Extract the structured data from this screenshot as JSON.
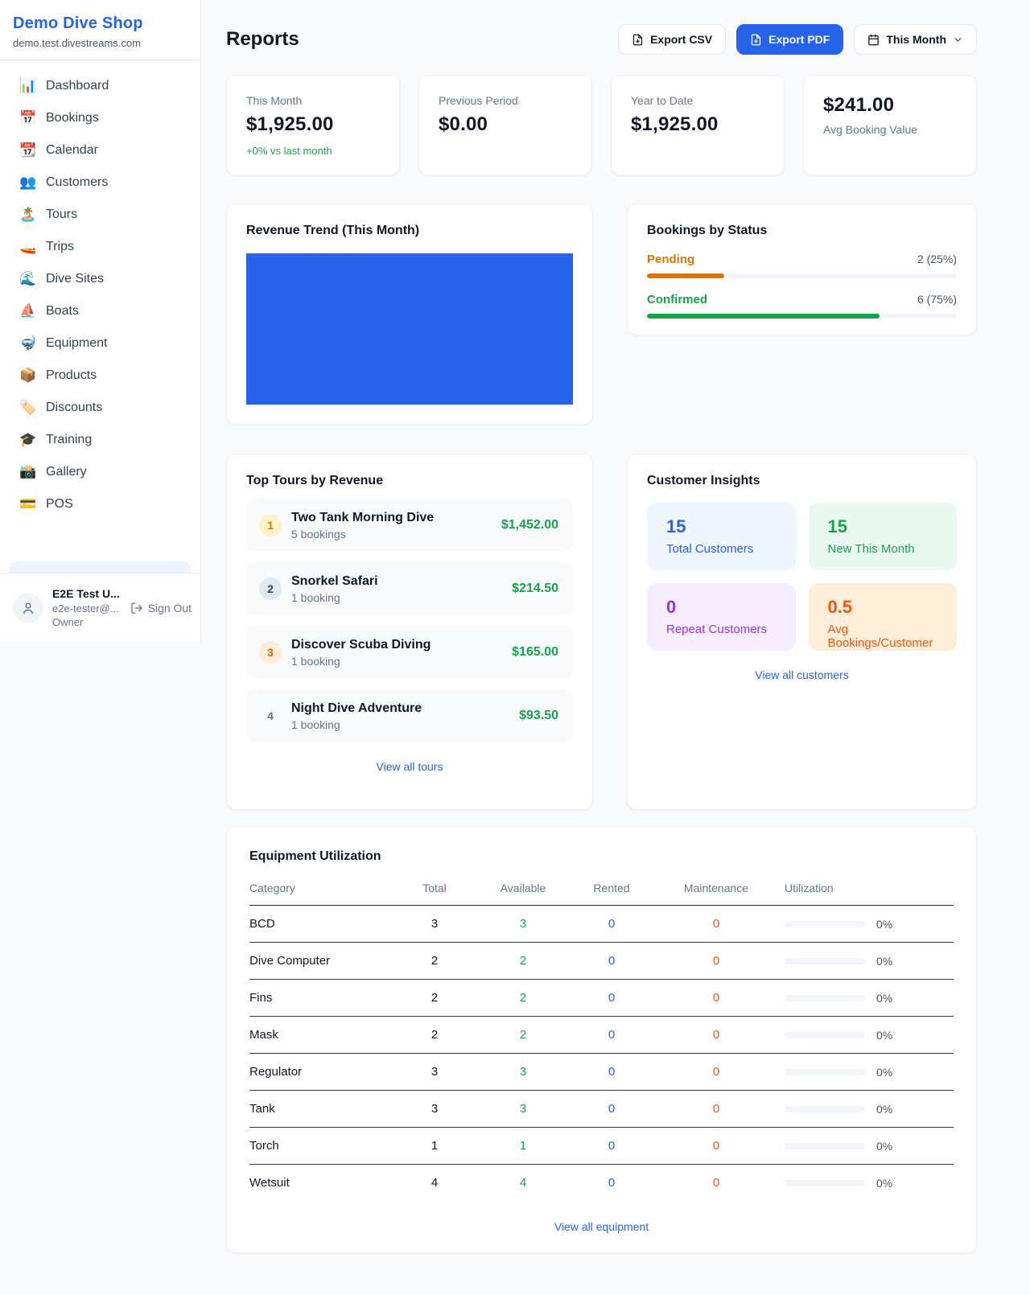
{
  "colors": {
    "accent_blue": "#2563eb",
    "green": "#16a34a",
    "orange_pending": "#d97706",
    "orange_deep": "#ea580c",
    "purple": "#9333ea",
    "page_bg": "#f8fafc"
  },
  "sidebar": {
    "brand": "Demo Dive Shop",
    "domain": "demo.test.divestreams.com",
    "items": [
      {
        "icon": "📊",
        "label": "Dashboard"
      },
      {
        "icon": "📅",
        "label": "Bookings"
      },
      {
        "icon": "📆",
        "label": "Calendar"
      },
      {
        "icon": "👥",
        "label": "Customers"
      },
      {
        "icon": "🏝️",
        "label": "Tours"
      },
      {
        "icon": "🚤",
        "label": "Trips"
      },
      {
        "icon": "🌊",
        "label": "Dive Sites"
      },
      {
        "icon": "⛵",
        "label": "Boats"
      },
      {
        "icon": "🤿",
        "label": "Equipment"
      },
      {
        "icon": "📦",
        "label": "Products"
      },
      {
        "icon": "🏷️",
        "label": "Discounts"
      },
      {
        "icon": "🎓",
        "label": "Training"
      },
      {
        "icon": "📸",
        "label": "Gallery"
      },
      {
        "icon": "💳",
        "label": "POS"
      }
    ],
    "user": {
      "name": "E2E Test U...",
      "email": "e2e-tester@...",
      "role": "Owner",
      "sign_out": "Sign Out"
    }
  },
  "header": {
    "title": "Reports",
    "export_csv": "Export CSV",
    "export_pdf": "Export PDF",
    "period": "This Month"
  },
  "stats": [
    {
      "label": "This Month",
      "value": "$1,925.00",
      "delta": "+0% vs last month"
    },
    {
      "label": "Previous Period",
      "value": "$0.00"
    },
    {
      "label": "Year to Date",
      "value": "$1,925.00"
    },
    {
      "label": "Avg Booking Value",
      "value": "$241.00"
    }
  ],
  "revenue_trend": {
    "title": "Revenue Trend (This Month)",
    "bar_color": "#2563eb"
  },
  "bookings_by_status": {
    "title": "Bookings by Status",
    "rows": [
      {
        "label": "Pending",
        "value": "2 (25%)",
        "pct": 25
      },
      {
        "label": "Confirmed",
        "value": "6 (75%)",
        "pct": 75
      }
    ]
  },
  "top_tours": {
    "title": "Top Tours by Revenue",
    "rows": [
      {
        "rank": "1",
        "name": "Two Tank Morning Dive",
        "bookings": "5 bookings",
        "amount": "$1,452.00"
      },
      {
        "rank": "2",
        "name": "Snorkel Safari",
        "bookings": "1 booking",
        "amount": "$214.50"
      },
      {
        "rank": "3",
        "name": "Discover Scuba Diving",
        "bookings": "1 booking",
        "amount": "$165.00"
      },
      {
        "rank": "4",
        "name": "Night Dive Adventure",
        "bookings": "1 booking",
        "amount": "$93.50"
      }
    ],
    "link": "View all tours"
  },
  "customer_insights": {
    "title": "Customer Insights",
    "tiles": [
      {
        "value": "15",
        "label": "Total Customers"
      },
      {
        "value": "15",
        "label": "New This Month"
      },
      {
        "value": "0",
        "label": "Repeat Customers"
      },
      {
        "value": "0.5",
        "label": "Avg Bookings/Customer"
      }
    ],
    "link": "View all customers"
  },
  "equipment": {
    "title": "Equipment Utilization",
    "columns": [
      "Category",
      "Total",
      "Available",
      "Rented",
      "Maintenance",
      "Utilization"
    ],
    "rows": [
      {
        "category": "BCD",
        "total": "3",
        "available": "3",
        "rented": "0",
        "maintenance": "0",
        "utilization": "0%",
        "util_pct": 0
      },
      {
        "category": "Dive Computer",
        "total": "2",
        "available": "2",
        "rented": "0",
        "maintenance": "0",
        "utilization": "0%",
        "util_pct": 0
      },
      {
        "category": "Fins",
        "total": "2",
        "available": "2",
        "rented": "0",
        "maintenance": "0",
        "utilization": "0%",
        "util_pct": 0
      },
      {
        "category": "Mask",
        "total": "2",
        "available": "2",
        "rented": "0",
        "maintenance": "0",
        "utilization": "0%",
        "util_pct": 0
      },
      {
        "category": "Regulator",
        "total": "3",
        "available": "3",
        "rented": "0",
        "maintenance": "0",
        "utilization": "0%",
        "util_pct": 0
      },
      {
        "category": "Tank",
        "total": "3",
        "available": "3",
        "rented": "0",
        "maintenance": "0",
        "utilization": "0%",
        "util_pct": 0
      },
      {
        "category": "Torch",
        "total": "1",
        "available": "1",
        "rented": "0",
        "maintenance": "0",
        "utilization": "0%",
        "util_pct": 0
      },
      {
        "category": "Wetsuit",
        "total": "4",
        "available": "4",
        "rented": "0",
        "maintenance": "0",
        "utilization": "0%",
        "util_pct": 0
      }
    ],
    "link": "View all equipment"
  }
}
